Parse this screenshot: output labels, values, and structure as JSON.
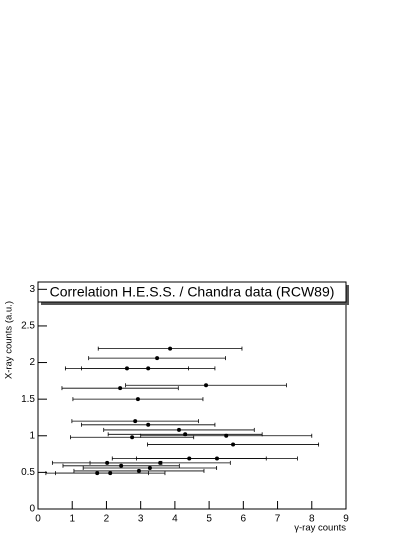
{
  "chart_data": {
    "type": "scatter",
    "title": "Correlation H.E.S.S. / Chandra data (RCW89)",
    "x_label": "γ-ray counts",
    "y_label": "X-ray counts (a.u.)",
    "xlim": [
      0,
      9
    ],
    "ylim": [
      0,
      3.1
    ],
    "xticks": [
      0,
      1,
      2,
      3,
      4,
      5,
      6,
      7,
      8,
      9
    ],
    "yticks": [
      0,
      0.5,
      1,
      1.5,
      2,
      2.5,
      3
    ],
    "color": "#000000",
    "series": [
      {
        "x": [
          3.86,
          3.48,
          2.6,
          3.22,
          4.91,
          2.4,
          2.92,
          2.84,
          3.22,
          4.12,
          4.3,
          5.5,
          2.75,
          5.7,
          5.23,
          4.42,
          2.02,
          3.57,
          2.43,
          3.27,
          1.73,
          2.11,
          2.95
        ],
        "y": [
          2.19,
          2.06,
          1.92,
          1.92,
          1.69,
          1.65,
          1.5,
          1.2,
          1.15,
          1.08,
          1.02,
          1.0,
          0.98,
          0.88,
          0.69,
          0.69,
          0.63,
          0.63,
          0.59,
          0.56,
          0.49,
          0.49,
          0.52
        ],
        "xerr": [
          2.1,
          2.0,
          1.8,
          1.95,
          2.35,
          1.7,
          1.9,
          1.85,
          1.95,
          2.2,
          2.25,
          2.5,
          1.8,
          2.5,
          2.35,
          2.25,
          1.6,
          2.05,
          1.7,
          1.95,
          1.5,
          1.6,
          1.9
        ]
      }
    ]
  }
}
